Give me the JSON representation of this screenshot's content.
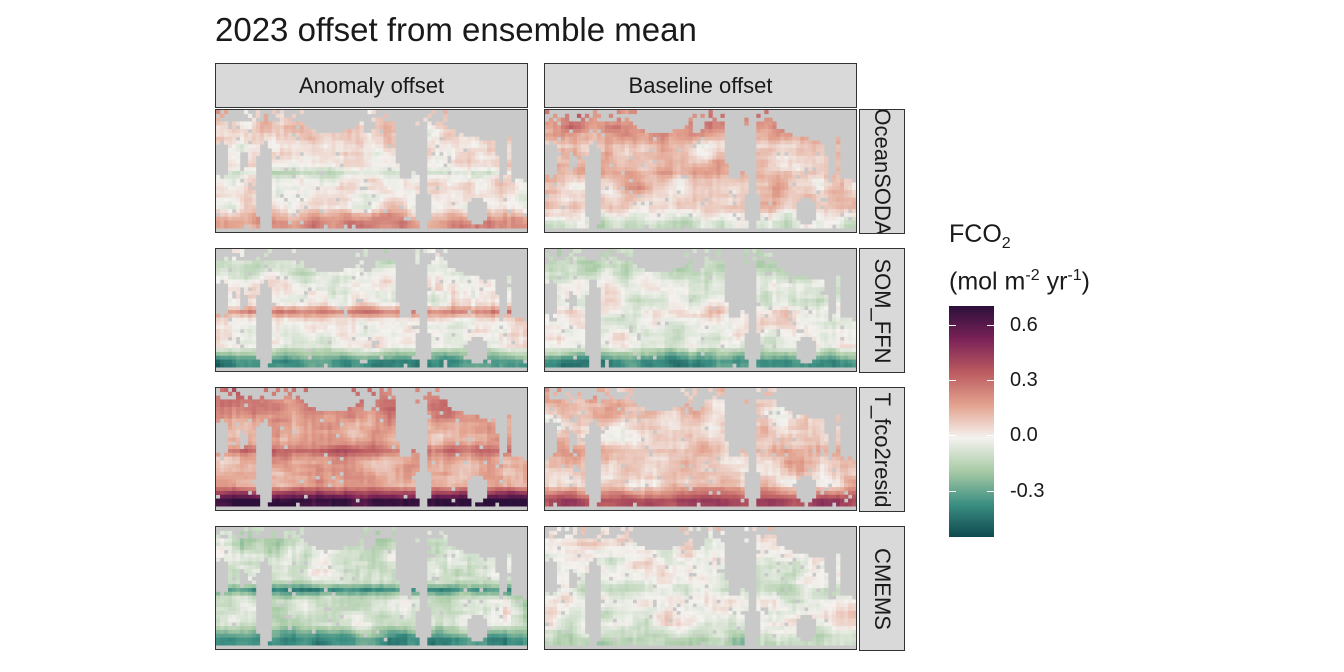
{
  "chart_data": {
    "type": "heatmap",
    "title": "2023 offset from ensemble mean",
    "facet_columns": [
      "Anomaly offset",
      "Baseline offset"
    ],
    "facet_rows": [
      "OceanSODA",
      "SOM_FFN",
      "...T_fco2resid",
      "CMEMS"
    ],
    "facet_rows_note": "third row strip label is clipped in the image; visible text: T_fco2resid",
    "facet_row_labels_visible": [
      "OceanSODA",
      "SOM_FFN",
      "T_fco2resid",
      "CMEMS"
    ],
    "legend": {
      "title_main": "FCO",
      "title_sub": "2",
      "unit_text_1": "(mol m",
      "unit_sup_1": "-2",
      "unit_text_2": " yr",
      "unit_sup_2": "-1",
      "unit_text_3": ")",
      "ticks": [
        0.6,
        0.3,
        0.0,
        -0.3
      ],
      "tick_labels": [
        "0.6",
        "0.3",
        "0.0",
        "-0.3"
      ],
      "range": [
        -0.55,
        0.7
      ],
      "colors": [
        "#0e4a4f",
        "#3c8f83",
        "#a9cba6",
        "#f4f2ef",
        "#e3a28e",
        "#bb5a60",
        "#7a2257",
        "#2c0f3a"
      ]
    },
    "land_color": "#c9c9c9",
    "ocean_na_color": "#ffffff",
    "panels": [
      {
        "row": "OceanSODA",
        "col": "Anomaly offset",
        "pattern": "mostly small offsets; negative band in tropical Pacific, positive in Southern Ocean",
        "bias": 0.02,
        "trop": -0.12,
        "south": 0.2,
        "north": 0.05
      },
      {
        "row": "OceanSODA",
        "col": "Baseline offset",
        "pattern": "positive in North Pacific and Southern Atlantic, negative in Southern Ocean strip",
        "bias": 0.08,
        "trop": 0.05,
        "south": -0.15,
        "north": 0.15
      },
      {
        "row": "SOM_FFN",
        "col": "Anomaly offset",
        "pattern": "strong positive patch in eastern equatorial Pacific, negative Southern Ocean",
        "bias": -0.02,
        "trop": 0.25,
        "south": -0.35,
        "north": -0.05
      },
      {
        "row": "SOM_FFN",
        "col": "Baseline offset",
        "pattern": "mixed small offsets, negative Southern Ocean",
        "bias": -0.04,
        "trop": 0.05,
        "south": -0.35,
        "north": -0.1
      },
      {
        "row": "T_fco2resid",
        "col": "Anomaly offset",
        "pattern": "broadly positive Pacific, strong positive Southern Ocean",
        "bias": 0.15,
        "trop": 0.15,
        "south": 0.55,
        "north": 0.12
      },
      {
        "row": "T_fco2resid",
        "col": "Baseline offset",
        "pattern": "mostly small positive, positive Southern Ocean",
        "bias": 0.06,
        "trop": 0.06,
        "south": 0.35,
        "north": 0.03
      },
      {
        "row": "CMEMS",
        "col": "Anomaly offset",
        "pattern": "mostly negative, strong negative band in tropical Pacific and Southern Ocean",
        "bias": -0.08,
        "trop": -0.28,
        "south": -0.3,
        "north": -0.04
      },
      {
        "row": "CMEMS",
        "col": "Baseline offset",
        "pattern": "mostly small offsets, slightly negative Southern Ocean",
        "bias": -0.02,
        "trop": -0.08,
        "south": -0.12,
        "north": 0.03
      }
    ]
  }
}
